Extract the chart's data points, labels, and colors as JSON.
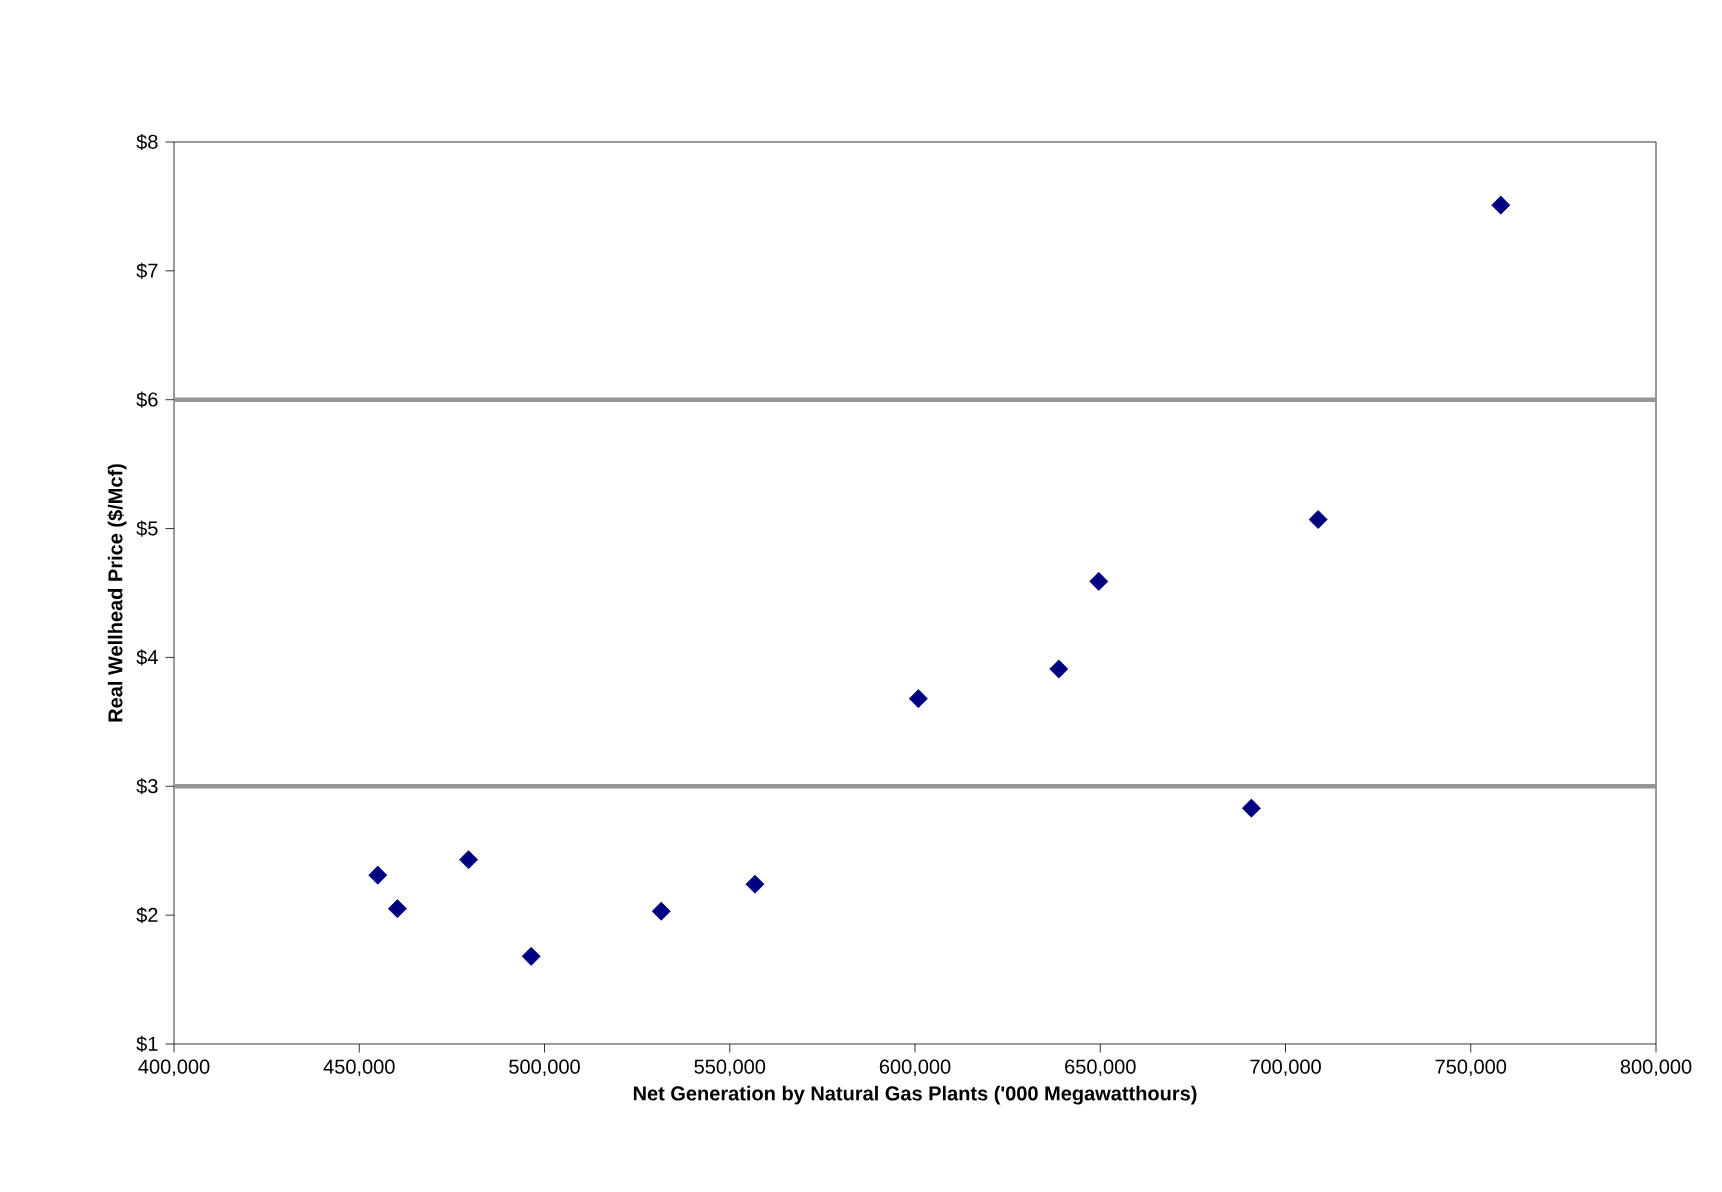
{
  "chart_data": {
    "type": "scatter",
    "xlabel": "Net Generation by Natural Gas Plants ('000 Megawatthours)",
    "ylabel": "Real Wellhead Price ($/Mcf)",
    "x": [
      455000,
      460300,
      479500,
      496400,
      531500,
      556800,
      600900,
      638800,
      649600,
      690800,
      708800,
      758100
    ],
    "series": [
      {
        "color": "#000080",
        "values": [
          2.31,
          2.05,
          2.43,
          1.68,
          2.03,
          2.24,
          3.68,
          3.91,
          4.59,
          2.83,
          5.07,
          7.51
        ]
      }
    ],
    "marker": "diamond",
    "xlim": [
      400000,
      800000
    ],
    "xticks": [
      {
        "value": 400000,
        "label": "400,000"
      },
      {
        "value": 450000,
        "label": "450,000"
      },
      {
        "value": 500000,
        "label": "500,000"
      },
      {
        "value": 550000,
        "label": "550,000"
      },
      {
        "value": 600000,
        "label": "600,000"
      },
      {
        "value": 650000,
        "label": "650,000"
      },
      {
        "value": 700000,
        "label": "700,000"
      },
      {
        "value": 750000,
        "label": "750,000"
      },
      {
        "value": 800000,
        "label": "800,000"
      }
    ],
    "ylim": [
      1,
      8
    ],
    "yticks": [
      {
        "value": 1,
        "label": "$1"
      },
      {
        "value": 2,
        "label": "$2"
      },
      {
        "value": 3,
        "label": "$3"
      },
      {
        "value": 4,
        "label": "$4"
      },
      {
        "value": 5,
        "label": "$5"
      },
      {
        "value": 6,
        "label": "$6"
      },
      {
        "value": 7,
        "label": "$7"
      },
      {
        "value": 8,
        "label": "$8"
      }
    ],
    "ref_lines": [
      {
        "axis": "y",
        "value": 6,
        "color": "#969696"
      },
      {
        "axis": "y",
        "value": 3,
        "color": "#969696"
      }
    ]
  }
}
